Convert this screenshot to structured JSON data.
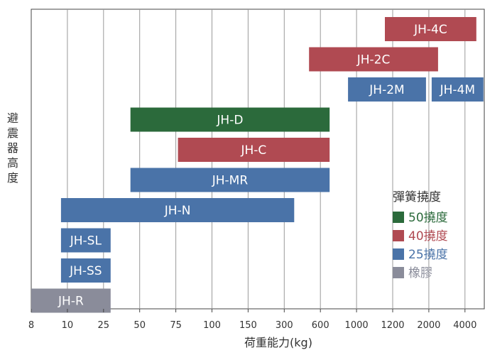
{
  "chart_data": {
    "type": "bar",
    "orientation": "horizontal-range",
    "xlabel": "荷重能力(kg)",
    "ylabel": "避震器高度",
    "x_ticks": [
      "8",
      "10",
      "25",
      "50",
      "75",
      "100",
      "150",
      "300",
      "600",
      "1000",
      "1200",
      "2000",
      "4000"
    ],
    "grid": true,
    "legend": {
      "title": "彈簧撓度",
      "placement": "bottom-right",
      "entries": [
        {
          "label": "50撓度",
          "color": "#2b6a3b"
        },
        {
          "label": "40撓度",
          "color": "#b04a52"
        },
        {
          "label": "25撓度",
          "color": "#4a73a8"
        },
        {
          "label": "橡膠",
          "color": "#8a8c9a"
        }
      ]
    },
    "bars": [
      {
        "label": "JH-4C",
        "start": "1200",
        "end": "4000",
        "level": 11,
        "type": "40撓度"
      },
      {
        "label": "JH-2C",
        "start": "600",
        "end": "2000",
        "level": 10,
        "type": "40撓度"
      },
      {
        "label": "JH-2M",
        "start": "1000",
        "end": "2000",
        "level": 9,
        "type": "25撓度"
      },
      {
        "label": "JH-4M",
        "start": "2000",
        "end": "4000",
        "level": 9,
        "type": "25撓度"
      },
      {
        "label": "JH-D",
        "start": "50",
        "end": "600",
        "level": 8,
        "type": "50撓度"
      },
      {
        "label": "JH-C",
        "start": "75",
        "end": "600",
        "level": 7,
        "type": "40撓度"
      },
      {
        "label": "JH-MR",
        "start": "50",
        "end": "600",
        "level": 6,
        "type": "25撓度"
      },
      {
        "label": "JH-N",
        "start": "10",
        "end": "300",
        "level": 5,
        "type": "25撓度"
      },
      {
        "label": "JH-SL",
        "start": "10",
        "end": "25",
        "level": 4,
        "type": "25撓度"
      },
      {
        "label": "JH-SS",
        "start": "10",
        "end": "25",
        "level": 3,
        "type": "25撓度"
      },
      {
        "label": "JH-R",
        "start": "8",
        "end": "25",
        "level": 2,
        "type": "橡膠"
      }
    ]
  }
}
